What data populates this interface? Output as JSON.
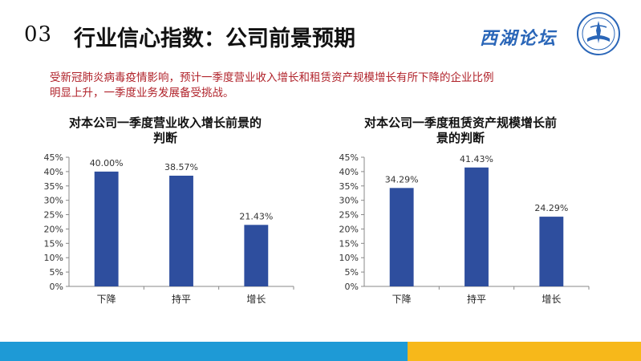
{
  "header": {
    "number": "03",
    "title": "行业信心指数：公司前景预期"
  },
  "logo": {
    "text": "西湖论坛"
  },
  "intro": {
    "line1": "受新冠肺炎病毒疫情影响，预计一季度营业收入增长和租赁资产规模增长有所下降的企业比例",
    "line2": "明显上升，一季度业务发展备受挑战。"
  },
  "colors": {
    "bar": "#2e4e9e",
    "intro_text": "#b0222a",
    "footer_blue": "#1e9ad6",
    "footer_yellow": "#f7b81a"
  },
  "chart_data": [
    {
      "type": "bar",
      "title_lines": [
        "对本公司一季度营业收入增长前景的",
        "判断"
      ],
      "categories": [
        "下降",
        "持平",
        "增长"
      ],
      "values": [
        40.0,
        38.57,
        21.43
      ],
      "data_labels": [
        "40.00%",
        "38.57%",
        "21.43%"
      ],
      "y_ticks": [
        "0%",
        "5%",
        "10%",
        "15%",
        "20%",
        "25%",
        "30%",
        "35%",
        "40%",
        "45%"
      ],
      "ylim": [
        0,
        45
      ],
      "grid": false,
      "legend": "none"
    },
    {
      "type": "bar",
      "title_lines": [
        "对本公司一季度租赁资产规模增长前",
        "景的判断"
      ],
      "categories": [
        "下降",
        "持平",
        "增长"
      ],
      "values": [
        34.29,
        41.43,
        24.29
      ],
      "data_labels": [
        "34.29%",
        "41.43%",
        "24.29%"
      ],
      "y_ticks": [
        "0%",
        "5%",
        "10%",
        "15%",
        "20%",
        "25%",
        "30%",
        "35%",
        "40%",
        "45%"
      ],
      "ylim": [
        0,
        45
      ],
      "grid": false,
      "legend": "none"
    }
  ]
}
